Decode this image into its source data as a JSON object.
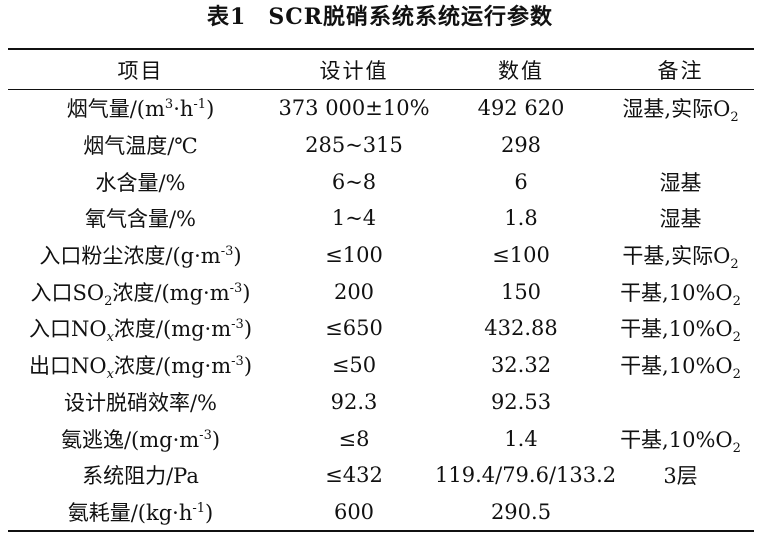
{
  "title": {
    "label": "表1",
    "text": "SCR脱硝系统系统运行参数"
  },
  "table": {
    "headers": [
      "项目",
      "设计值",
      "数值",
      "备注"
    ],
    "rows": [
      {
        "item": [
          {
            "t": "烟气量/(m"
          },
          {
            "sup": "3"
          },
          {
            "t": "·h"
          },
          {
            "sup": "-1"
          },
          {
            "t": ")"
          }
        ],
        "design": "373 000±10%",
        "value": "492 620",
        "note": [
          {
            "t": "湿基,实际O"
          },
          {
            "sub": "2"
          }
        ]
      },
      {
        "item": [
          {
            "t": "烟气温度/℃"
          }
        ],
        "design": "285~315",
        "value": "298",
        "note": []
      },
      {
        "item": [
          {
            "t": "水含量/%"
          }
        ],
        "design": "6~8",
        "value": "6",
        "note": [
          {
            "t": "湿基"
          }
        ]
      },
      {
        "item": [
          {
            "t": "氧气含量/%"
          }
        ],
        "design": "1~4",
        "value": "1.8",
        "note": [
          {
            "t": "湿基"
          }
        ]
      },
      {
        "item": [
          {
            "t": "入口粉尘浓度/(g·m"
          },
          {
            "sup": "-3"
          },
          {
            "t": ")"
          }
        ],
        "design": "≤100",
        "value": "≤100",
        "note": [
          {
            "t": "干基,实际O"
          },
          {
            "sub": "2"
          }
        ]
      },
      {
        "item": [
          {
            "t": "入口SO"
          },
          {
            "sub": "2"
          },
          {
            "t": "浓度/(mg·m"
          },
          {
            "sup": "-3"
          },
          {
            "t": ")"
          }
        ],
        "design": "200",
        "value": "150",
        "note": [
          {
            "t": "干基,10%O"
          },
          {
            "sub": "2"
          }
        ]
      },
      {
        "item": [
          {
            "t": "入口NO"
          },
          {
            "sub": "x"
          },
          {
            "t": "浓度/(mg·m"
          },
          {
            "sup": "-3"
          },
          {
            "t": ")"
          }
        ],
        "design": "≤650",
        "value": "432.88",
        "note": [
          {
            "t": "干基,10%O"
          },
          {
            "sub": "2"
          }
        ]
      },
      {
        "item": [
          {
            "t": "出口NO"
          },
          {
            "sub": "x"
          },
          {
            "t": "浓度/(mg·m"
          },
          {
            "sup": "-3"
          },
          {
            "t": ")"
          }
        ],
        "design": "≤50",
        "value": "32.32",
        "note": [
          {
            "t": "干基,10%O"
          },
          {
            "sub": "2"
          }
        ]
      },
      {
        "item": [
          {
            "t": "设计脱硝效率/%"
          }
        ],
        "design": "92.3",
        "value": "92.53",
        "note": []
      },
      {
        "item": [
          {
            "t": "氨逃逸/(mg·m"
          },
          {
            "sup": "-3"
          },
          {
            "t": ")"
          }
        ],
        "design": "≤8",
        "value": "1.4",
        "note": [
          {
            "t": "干基,10%O"
          },
          {
            "sub": "2"
          }
        ]
      },
      {
        "item": [
          {
            "t": "系统阻力/Pa"
          }
        ],
        "design": "≤432",
        "value": "119.4/79.6/133.2",
        "note": [
          {
            "t": "3层"
          }
        ]
      },
      {
        "item": [
          {
            "t": "氨耗量/(kg·h"
          },
          {
            "sup": "-1"
          },
          {
            "t": ")"
          }
        ],
        "design": "600",
        "value": "290.5",
        "note": []
      }
    ]
  }
}
